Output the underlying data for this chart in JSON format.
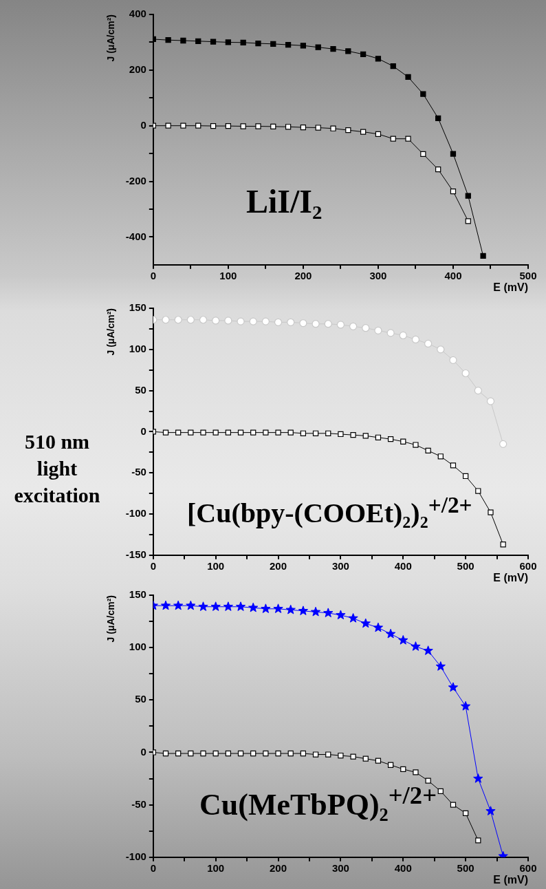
{
  "chart_data": [
    {
      "type": "line",
      "xlabel": "E (mV)",
      "ylabel": "J (μA/cm²)",
      "annotations": [
        "LiI/I₂"
      ],
      "x": [
        0,
        20,
        40,
        60,
        80,
        100,
        120,
        140,
        160,
        180,
        200,
        220,
        240,
        260,
        280,
        300,
        320,
        340,
        360,
        380,
        400,
        420,
        440
      ],
      "xlim": [
        0,
        500
      ],
      "xticks": [
        0,
        {
          "value": 50,
          "label": null
        },
        100,
        {
          "value": 150,
          "label": null
        },
        200,
        {
          "value": 250,
          "label": null
        },
        300,
        {
          "value": 350,
          "label": null
        },
        400,
        {
          "value": 450,
          "label": null
        },
        500
      ],
      "ylim": [
        -500,
        400
      ],
      "yticks": [
        -400,
        {
          "value": -300,
          "label": null
        },
        -200,
        {
          "value": -100,
          "label": null
        },
        0,
        {
          "value": 100,
          "label": null
        },
        200,
        {
          "value": 300,
          "label": null
        },
        400
      ],
      "marker": "square",
      "line_style": "solid",
      "series": [
        {
          "color": "#000000",
          "values": [
            311,
            308,
            306,
            304,
            302,
            300,
            299,
            296,
            294,
            291,
            288,
            282,
            276,
            268,
            257,
            241,
            214,
            175,
            114,
            27,
            -101,
            -252,
            -468
          ]
        },
        {
          "color": "#ffffff",
          "values": [
            0,
            0,
            0,
            0,
            -1,
            -1,
            -2,
            -2,
            -3,
            -4,
            -6,
            -7,
            -10,
            -16,
            -22,
            -30,
            -47,
            -47,
            -102,
            -157,
            -236,
            -343,
            null
          ]
        }
      ]
    },
    {
      "type": "line",
      "xlabel": "E (mV)",
      "ylabel": "J (μA/cm²)",
      "annotations": [
        "510 nm light excitation",
        "[Cu(bpy-(COOEt)₂)₂$^{+/2+}$"
      ],
      "x": [
        0,
        20,
        40,
        60,
        80,
        100,
        120,
        140,
        160,
        180,
        200,
        220,
        240,
        260,
        280,
        300,
        320,
        340,
        360,
        380,
        400,
        420,
        440,
        460,
        480,
        500,
        520,
        540,
        560
      ],
      "xlim": [
        0,
        600
      ],
      "xticks": [
        0,
        {
          "value": 50,
          "label": null
        },
        100,
        {
          "value": 150,
          "label": null
        },
        200,
        {
          "value": 250,
          "label": null
        },
        300,
        {
          "value": 350,
          "label": null
        },
        400,
        {
          "value": 450,
          "label": null
        },
        500,
        {
          "value": 550,
          "label": null
        },
        600
      ],
      "ylim": [
        -150,
        150
      ],
      "yticks": [
        -150,
        {
          "value": -125,
          "label": null
        },
        -100,
        {
          "value": -75,
          "label": null
        },
        -50,
        {
          "value": -25,
          "label": null
        },
        0,
        {
          "value": 25,
          "label": null
        },
        50,
        {
          "value": 75,
          "label": null
        },
        100,
        {
          "value": 125,
          "label": null
        },
        150
      ],
      "line_style": "solid",
      "series": [
        {
          "color": "#ffffff",
          "marker": "circle",
          "values": [
            136,
            136,
            136,
            136,
            136,
            135,
            135,
            134,
            134,
            134,
            133,
            133,
            132,
            131,
            131,
            130,
            128,
            126,
            123,
            120,
            117,
            112,
            107,
            100,
            87,
            71,
            50,
            37,
            -15
          ]
        },
        {
          "color": "#ffffff",
          "marker": "square",
          "values": [
            0,
            -1,
            -1,
            -1,
            -1,
            -1,
            -1,
            -1,
            -1,
            -1,
            -1,
            -1,
            -2,
            -2,
            -2,
            -3,
            -4,
            -5,
            -7,
            -9,
            -12,
            -16,
            -23,
            -30,
            -41,
            -54,
            -72,
            -98,
            -137
          ]
        }
      ]
    },
    {
      "type": "line",
      "xlabel": "E (mV)",
      "ylabel": "J (μA/cm²)",
      "annotations": [
        "Cu(MeTbPQ)₂$^{+/2+}$"
      ],
      "x": [
        0,
        20,
        40,
        60,
        80,
        100,
        120,
        140,
        160,
        180,
        200,
        220,
        240,
        260,
        280,
        300,
        320,
        340,
        360,
        380,
        400,
        420,
        440,
        460,
        480,
        500,
        520,
        540,
        560
      ],
      "xlim": [
        0,
        600
      ],
      "xticks": [
        0,
        {
          "value": 50,
          "label": null
        },
        100,
        {
          "value": 150,
          "label": null
        },
        200,
        {
          "value": 250,
          "label": null
        },
        300,
        {
          "value": 350,
          "label": null
        },
        400,
        {
          "value": 450,
          "label": null
        },
        500,
        {
          "value": 550,
          "label": null
        },
        600
      ],
      "ylim": [
        -100,
        150
      ],
      "yticks": [
        -100,
        {
          "value": -75,
          "label": null
        },
        -50,
        {
          "value": -25,
          "label": null
        },
        0,
        {
          "value": 25,
          "label": null
        },
        50,
        {
          "value": 75,
          "label": null
        },
        100,
        {
          "value": 125,
          "label": null
        },
        150
      ],
      "line_style": "solid",
      "series": [
        {
          "color": "#0000ff",
          "marker": "star",
          "values": [
            140,
            140,
            140,
            140,
            139,
            139,
            139,
            139,
            138,
            137,
            137,
            136,
            135,
            134,
            133,
            131,
            128,
            123,
            119,
            113,
            107,
            101,
            97,
            82,
            62,
            44,
            -25,
            -56,
            -99
          ]
        },
        {
          "color": "#ffffff",
          "marker": "square",
          "values": [
            0,
            -1,
            -1,
            -1,
            -1,
            -1,
            -1,
            -1,
            -1,
            -1,
            -1,
            -1,
            -1,
            -2,
            -2,
            -3,
            -4,
            -6,
            -8,
            -12,
            -16,
            -19,
            -27,
            -37,
            -50,
            -58,
            -84,
            null,
            null
          ]
        }
      ]
    }
  ]
}
